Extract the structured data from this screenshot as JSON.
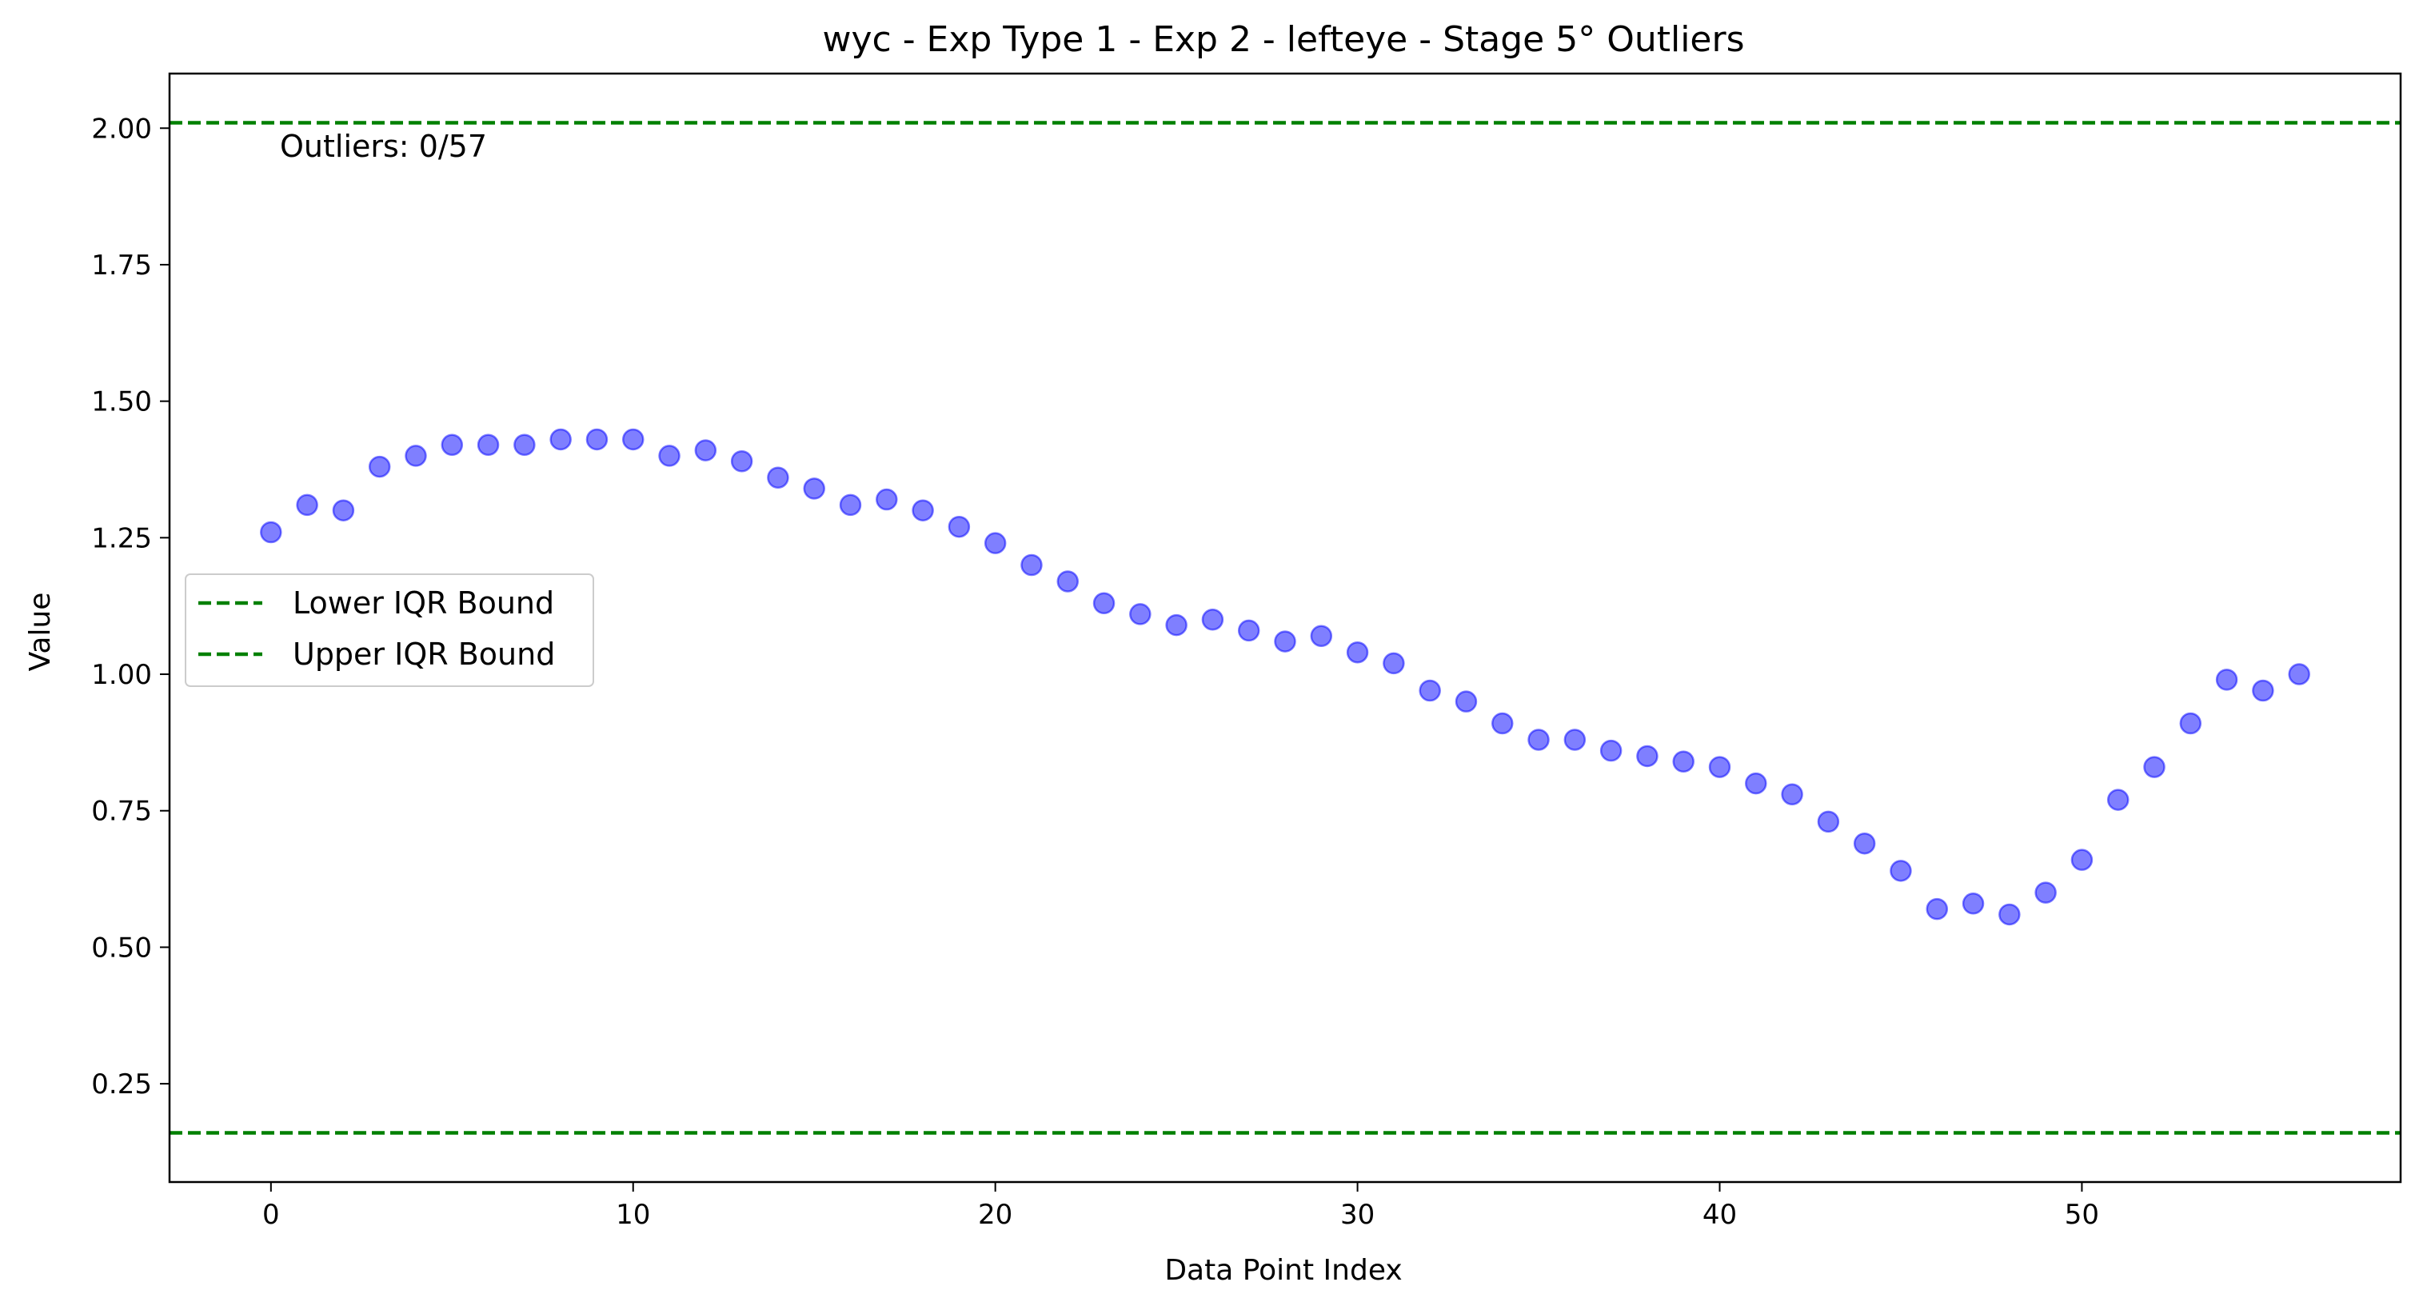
{
  "chart_data": {
    "type": "scatter",
    "title": "wyc - Exp Type 1 - Exp 2 - lefteye - Stage 5° Outliers",
    "xlabel": "Data Point Index",
    "ylabel": "Value",
    "xlim": [
      -2.8,
      58.8
    ],
    "ylim": [
      0.07,
      2.1
    ],
    "xticks": [
      0,
      10,
      20,
      30,
      40,
      50
    ],
    "yticks": [
      0.25,
      0.5,
      0.75,
      1.0,
      1.25,
      1.5,
      1.75,
      2.0
    ],
    "ytick_labels": [
      "0.25",
      "0.50",
      "0.75",
      "1.00",
      "1.25",
      "1.50",
      "1.75",
      "2.00"
    ],
    "grid": false,
    "legend_placement": "center-left",
    "annotation": "Outliers: 0/57",
    "point_color": "#0000ff",
    "lines": [
      {
        "name": "Lower IQR Bound",
        "y": 0.16,
        "color": "#008000",
        "style": "dashed"
      },
      {
        "name": "Upper IQR Bound",
        "y": 2.01,
        "color": "#008000",
        "style": "dashed"
      }
    ],
    "series": [
      {
        "x": [
          0,
          1,
          2,
          3,
          4,
          5,
          6,
          7,
          8,
          9,
          10,
          11,
          12,
          13,
          14,
          15,
          16,
          17,
          18,
          19,
          20,
          21,
          22,
          23,
          24,
          25,
          26,
          27,
          28,
          29,
          30,
          31,
          32,
          33,
          34,
          35,
          36,
          37,
          38,
          39,
          40,
          41,
          42,
          43,
          44,
          45,
          46,
          47,
          48,
          49,
          50,
          51,
          52,
          53,
          54,
          55,
          56
        ],
        "y": [
          1.26,
          1.31,
          1.3,
          1.38,
          1.4,
          1.42,
          1.42,
          1.42,
          1.43,
          1.43,
          1.43,
          1.4,
          1.41,
          1.39,
          1.36,
          1.34,
          1.31,
          1.32,
          1.3,
          1.27,
          1.24,
          1.2,
          1.17,
          1.13,
          1.11,
          1.09,
          1.1,
          1.08,
          1.06,
          1.07,
          1.04,
          1.02,
          0.97,
          0.95,
          0.91,
          0.88,
          0.88,
          0.86,
          0.85,
          0.84,
          0.83,
          0.8,
          0.78,
          0.73,
          0.69,
          0.64,
          0.57,
          0.58,
          0.56,
          0.6,
          0.66,
          0.77,
          0.83,
          0.91,
          0.99,
          0.97,
          1.0
        ]
      }
    ]
  }
}
